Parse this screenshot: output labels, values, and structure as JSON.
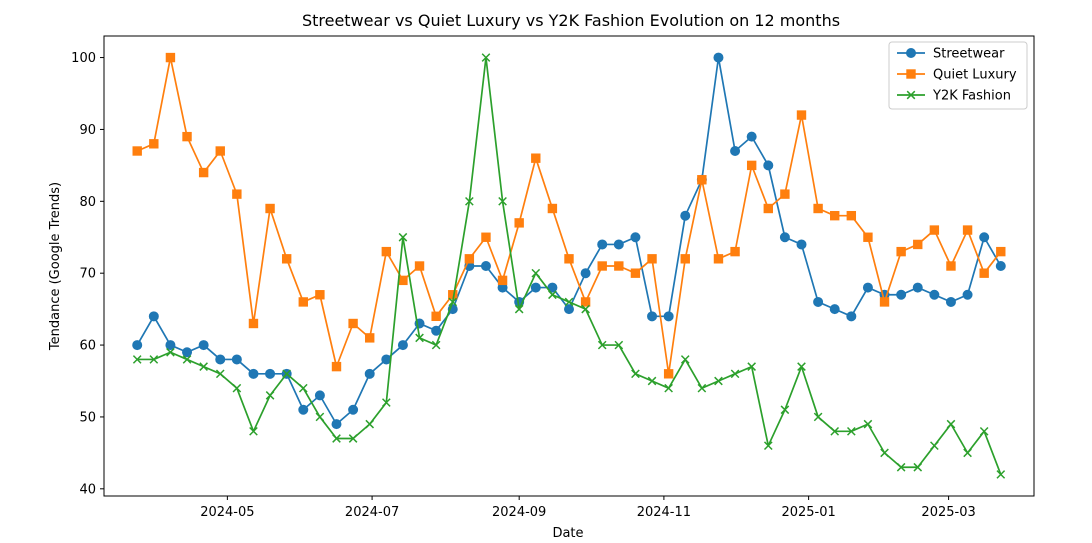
{
  "chart_data": {
    "type": "line",
    "title": "Streetwear vs Quiet Luxury vs Y2K Fashion Evolution on 12 months",
    "xlabel": "Date",
    "ylabel": "Tendance (Google Trends)",
    "ylim": [
      39,
      103
    ],
    "xlim": [
      "2024-03-10",
      "2025-04-06"
    ],
    "x_ticks": [
      {
        "date": "2024-05-01",
        "label": "2024-05"
      },
      {
        "date": "2024-07-01",
        "label": "2024-07"
      },
      {
        "date": "2024-09-01",
        "label": "2024-09"
      },
      {
        "date": "2024-11-01",
        "label": "2024-11"
      },
      {
        "date": "2025-01-01",
        "label": "2025-01"
      },
      {
        "date": "2025-03-01",
        "label": "2025-03"
      }
    ],
    "y_ticks": [
      40,
      50,
      60,
      70,
      80,
      90,
      100
    ],
    "grid": false,
    "legend": "top-right",
    "x": [
      "2024-03-24",
      "2024-03-31",
      "2024-04-07",
      "2024-04-14",
      "2024-04-21",
      "2024-04-28",
      "2024-05-05",
      "2024-05-12",
      "2024-05-19",
      "2024-05-26",
      "2024-06-02",
      "2024-06-09",
      "2024-06-16",
      "2024-06-23",
      "2024-06-30",
      "2024-07-07",
      "2024-07-14",
      "2024-07-21",
      "2024-07-28",
      "2024-08-04",
      "2024-08-11",
      "2024-08-18",
      "2024-08-25",
      "2024-09-01",
      "2024-09-08",
      "2024-09-15",
      "2024-09-22",
      "2024-09-29",
      "2024-10-06",
      "2024-10-13",
      "2024-10-20",
      "2024-10-27",
      "2024-11-03",
      "2024-11-10",
      "2024-11-17",
      "2024-11-24",
      "2024-12-01",
      "2024-12-08",
      "2024-12-15",
      "2024-12-22",
      "2024-12-29",
      "2025-01-05",
      "2025-01-12",
      "2025-01-19",
      "2025-01-26",
      "2025-02-02",
      "2025-02-09",
      "2025-02-16",
      "2025-02-23",
      "2025-03-02",
      "2025-03-09",
      "2025-03-16",
      "2025-03-23"
    ],
    "series": [
      {
        "name": "Streetwear",
        "color": "#1f77b4",
        "marker": "circle",
        "values": [
          60,
          64,
          60,
          59,
          60,
          58,
          58,
          56,
          56,
          56,
          51,
          53,
          49,
          51,
          56,
          58,
          60,
          63,
          62,
          65,
          71,
          71,
          68,
          66,
          68,
          68,
          65,
          70,
          74,
          74,
          75,
          64,
          64,
          78,
          83,
          100,
          87,
          89,
          85,
          75,
          74,
          66,
          65,
          64,
          68,
          67,
          67,
          68,
          67,
          66,
          67,
          75,
          71
        ]
      },
      {
        "name": "Quiet Luxury",
        "color": "#ff7f0e",
        "marker": "square",
        "values": [
          87,
          88,
          100,
          89,
          84,
          87,
          81,
          63,
          79,
          72,
          66,
          67,
          57,
          63,
          61,
          73,
          69,
          71,
          64,
          67,
          72,
          75,
          69,
          77,
          86,
          79,
          72,
          66,
          71,
          71,
          70,
          72,
          56,
          72,
          83,
          72,
          73,
          85,
          79,
          81,
          92,
          79,
          78,
          78,
          75,
          66,
          73,
          74,
          76,
          71,
          76,
          70,
          73
        ]
      },
      {
        "name": "Y2K Fashion",
        "color": "#2ca02c",
        "marker": "x",
        "values": [
          58,
          58,
          59,
          58,
          57,
          56,
          54,
          48,
          53,
          56,
          54,
          50,
          47,
          47,
          49,
          52,
          75,
          61,
          60,
          66,
          80,
          100,
          80,
          65,
          70,
          67,
          66,
          65,
          60,
          60,
          56,
          55,
          54,
          58,
          54,
          55,
          56,
          57,
          46,
          51,
          57,
          50,
          48,
          48,
          49,
          45,
          43,
          43,
          46,
          49,
          45,
          48,
          42
        ]
      }
    ]
  }
}
